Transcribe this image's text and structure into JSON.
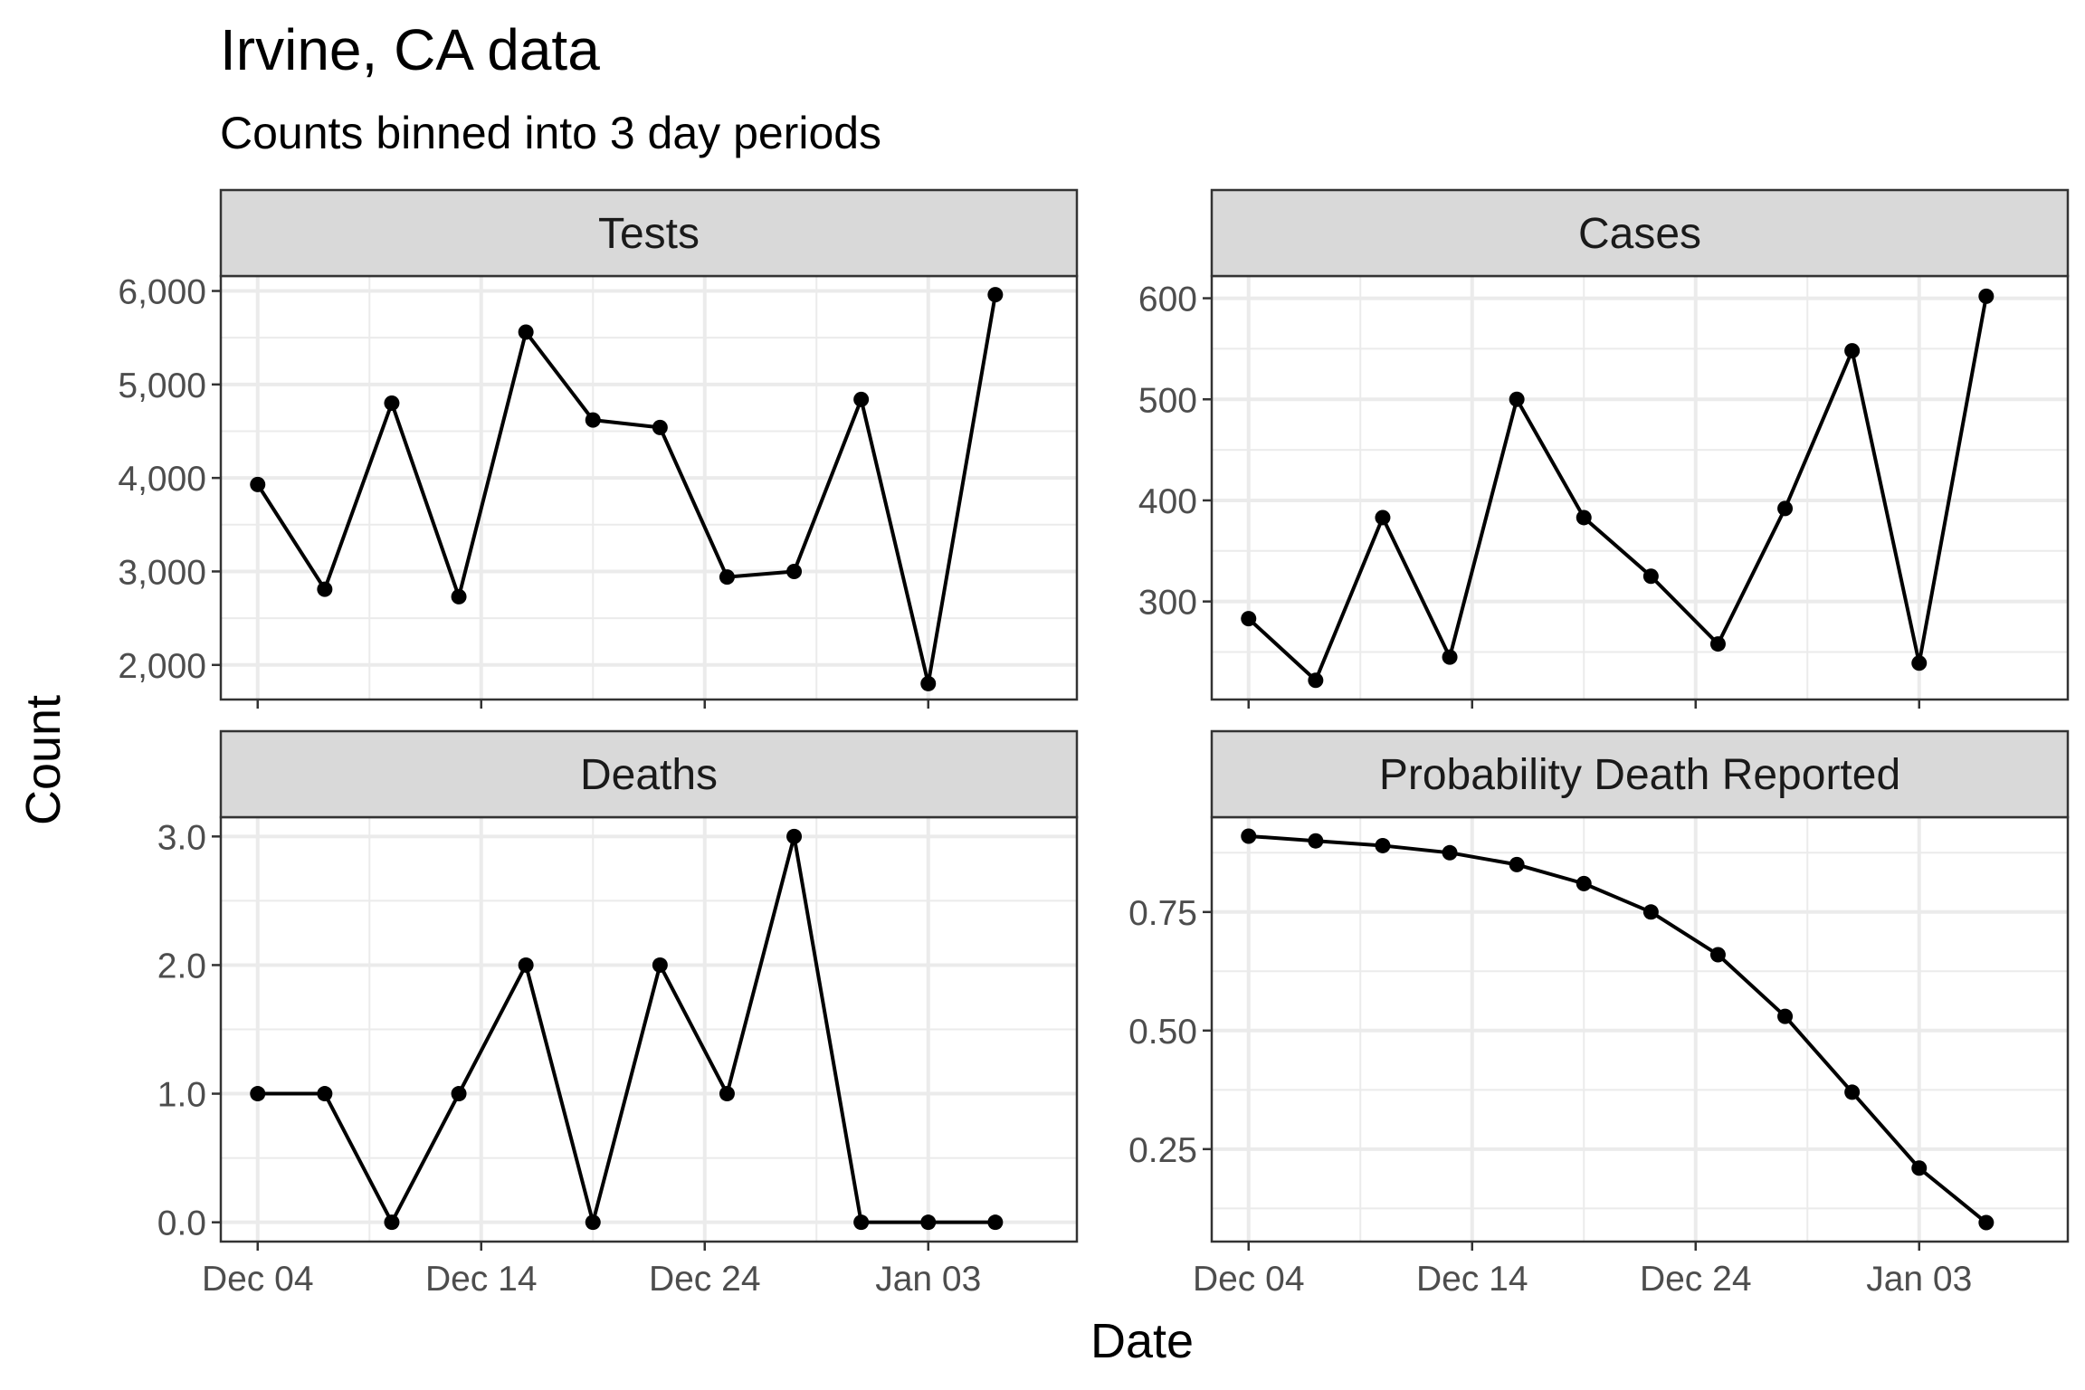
{
  "title": "Irvine, CA data",
  "subtitle": "Counts binned into 3 day periods",
  "x_axis_title": "Date",
  "y_axis_title": "Count",
  "x_tick_labels": [
    "Dec 04",
    "Dec 14",
    "Dec 24",
    "Jan 03"
  ],
  "chart_data": [
    {
      "type": "line",
      "title": "Tests",
      "xlabel": "Date",
      "ylabel": "Count",
      "x": [
        "2020-12-04",
        "2020-12-07",
        "2020-12-10",
        "2020-12-13",
        "2020-12-16",
        "2020-12-19",
        "2020-12-22",
        "2020-12-25",
        "2020-12-28",
        "2020-12-31",
        "2021-01-03",
        "2021-01-06"
      ],
      "values": [
        3930,
        2810,
        4800,
        2730,
        5560,
        4620,
        4540,
        2940,
        3000,
        4840,
        1800,
        5960
      ],
      "ylim": [
        1630,
        6160
      ],
      "yticks": [
        2000,
        3000,
        4000,
        5000,
        6000
      ],
      "ytick_labels": [
        "2,000",
        "3,000",
        "4,000",
        "5,000",
        "6,000"
      ]
    },
    {
      "type": "line",
      "title": "Cases",
      "xlabel": "Date",
      "ylabel": "Count",
      "x": [
        "2020-12-04",
        "2020-12-07",
        "2020-12-10",
        "2020-12-13",
        "2020-12-16",
        "2020-12-19",
        "2020-12-22",
        "2020-12-25",
        "2020-12-28",
        "2020-12-31",
        "2021-01-03",
        "2021-01-06"
      ],
      "values": [
        283,
        222,
        383,
        245,
        500,
        383,
        325,
        258,
        392,
        548,
        239,
        602
      ],
      "ylim": [
        203,
        622
      ],
      "yticks": [
        300,
        400,
        500,
        600
      ],
      "ytick_labels": [
        "300",
        "400",
        "500",
        "600"
      ]
    },
    {
      "type": "line",
      "title": "Deaths",
      "xlabel": "Date",
      "ylabel": "Count",
      "x": [
        "2020-12-04",
        "2020-12-07",
        "2020-12-10",
        "2020-12-13",
        "2020-12-16",
        "2020-12-19",
        "2020-12-22",
        "2020-12-25",
        "2020-12-28",
        "2020-12-31",
        "2021-01-03",
        "2021-01-06"
      ],
      "values": [
        1,
        1,
        0,
        1,
        2,
        0,
        2,
        1,
        3,
        0,
        0,
        0
      ],
      "ylim": [
        -0.15,
        3.15
      ],
      "yticks": [
        0,
        1,
        2,
        3
      ],
      "ytick_labels": [
        "0.0",
        "1.0",
        "2.0",
        "3.0"
      ]
    },
    {
      "type": "line",
      "title": "Probability Death Reported",
      "xlabel": "Date",
      "ylabel": "Count",
      "x": [
        "2020-12-04",
        "2020-12-07",
        "2020-12-10",
        "2020-12-13",
        "2020-12-16",
        "2020-12-19",
        "2020-12-22",
        "2020-12-25",
        "2020-12-28",
        "2020-12-31",
        "2021-01-03",
        "2021-01-06"
      ],
      "values": [
        0.91,
        0.9,
        0.89,
        0.875,
        0.85,
        0.81,
        0.75,
        0.66,
        0.53,
        0.37,
        0.21,
        0.095
      ],
      "ylim": [
        0.055,
        0.95
      ],
      "yticks": [
        0.25,
        0.5,
        0.75
      ],
      "ytick_labels": [
        "0.25",
        "0.50",
        "0.75"
      ]
    }
  ]
}
